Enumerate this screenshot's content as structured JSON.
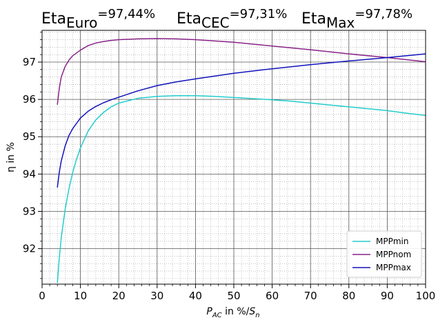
{
  "chart_data": {
    "type": "line",
    "title_parts": [
      {
        "base": "Eta",
        "sub": "Euro",
        "value": "=97,44%"
      },
      {
        "base": "Eta",
        "sub": "CEC",
        "value": "=97,31%"
      },
      {
        "base": "Eta",
        "sub": "Max",
        "value": "=97,78%"
      }
    ],
    "ylabel": "η in %",
    "xlabel": {
      "p": "P",
      "p_sub": "AC",
      "middle": " in %/",
      "s": "S",
      "s_sub": "n"
    },
    "xlim": [
      0,
      100
    ],
    "ylim": [
      91.05,
      97.85
    ],
    "xticks": [
      0,
      10,
      20,
      30,
      40,
      50,
      60,
      70,
      80,
      90,
      100
    ],
    "yticks": [
      92,
      93,
      94,
      95,
      96,
      97
    ],
    "grid": true,
    "legend_position": "bottom-right",
    "series": [
      {
        "name": "MPPmin",
        "color": "#22cccc",
        "x": [
          4,
          4.5,
          5,
          6,
          7,
          8,
          9,
          10,
          12,
          14,
          16,
          18,
          20,
          25,
          30,
          35,
          40,
          45,
          50,
          55,
          60,
          65,
          70,
          75,
          80,
          85,
          90,
          95,
          100
        ],
        "y": [
          91.1,
          91.75,
          92.3,
          93.05,
          93.6,
          94.05,
          94.4,
          94.7,
          95.15,
          95.45,
          95.65,
          95.8,
          95.9,
          96.03,
          96.08,
          96.1,
          96.1,
          96.08,
          96.05,
          96.02,
          95.99,
          95.95,
          95.9,
          95.85,
          95.8,
          95.75,
          95.7,
          95.63,
          95.57
        ]
      },
      {
        "name": "MPPnom",
        "color": "#882288",
        "x": [
          4,
          4.5,
          5,
          6,
          7,
          8,
          10,
          12,
          14,
          16,
          18,
          20,
          25,
          30,
          35,
          40,
          50,
          60,
          70,
          80,
          90,
          100
        ],
        "y": [
          95.87,
          96.3,
          96.6,
          96.88,
          97.05,
          97.17,
          97.32,
          97.44,
          97.51,
          97.55,
          97.58,
          97.6,
          97.62,
          97.63,
          97.62,
          97.6,
          97.53,
          97.43,
          97.33,
          97.22,
          97.12,
          97.01
        ]
      },
      {
        "name": "MPPmax",
        "color": "#1111bb",
        "x": [
          4,
          4.5,
          5,
          6,
          7,
          8,
          10,
          12,
          14,
          16,
          18,
          20,
          25,
          30,
          35,
          40,
          50,
          60,
          70,
          80,
          90,
          100
        ],
        "y": [
          93.65,
          94.05,
          94.35,
          94.75,
          95.03,
          95.22,
          95.5,
          95.68,
          95.81,
          95.91,
          95.99,
          96.06,
          96.23,
          96.37,
          96.47,
          96.55,
          96.7,
          96.82,
          96.93,
          97.03,
          97.12,
          97.22
        ]
      }
    ]
  }
}
